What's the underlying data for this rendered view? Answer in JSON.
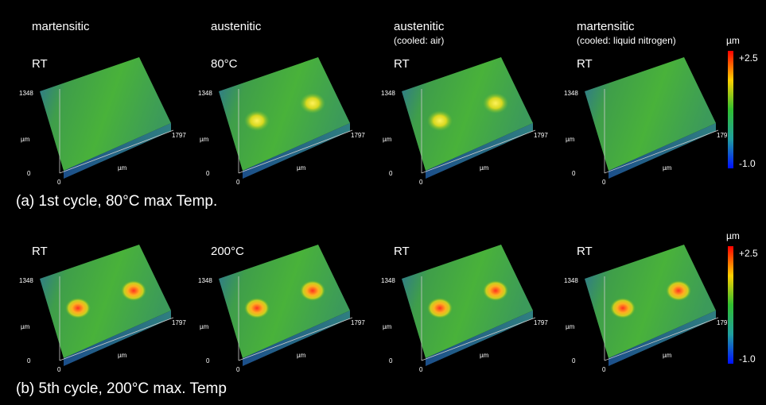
{
  "axes": {
    "y_max": "1348",
    "y_unit": "µm",
    "origin": "0",
    "x_unit": "µm",
    "x_max": "1797"
  },
  "scale": {
    "unit": "µm",
    "max": "+2.5",
    "min": "-1.0"
  },
  "rows": [
    {
      "caption": "(a) 1st cycle, 80°C max Temp.",
      "panels": [
        {
          "title": "martensitic",
          "temp": "RT"
        },
        {
          "title": "austenitic",
          "temp": "80°C"
        },
        {
          "title": "austenitic",
          "note": "(cooled: air)",
          "temp": "RT"
        },
        {
          "title": "martensitic",
          "note": "(cooled: liquid nitrogen)",
          "temp": "RT"
        }
      ]
    },
    {
      "caption": "(b) 5th cycle, 200°C max. Temp",
      "panels": [
        {
          "temp": "RT"
        },
        {
          "temp": "200°C"
        },
        {
          "temp": "RT"
        },
        {
          "temp": "RT"
        }
      ]
    }
  ]
}
